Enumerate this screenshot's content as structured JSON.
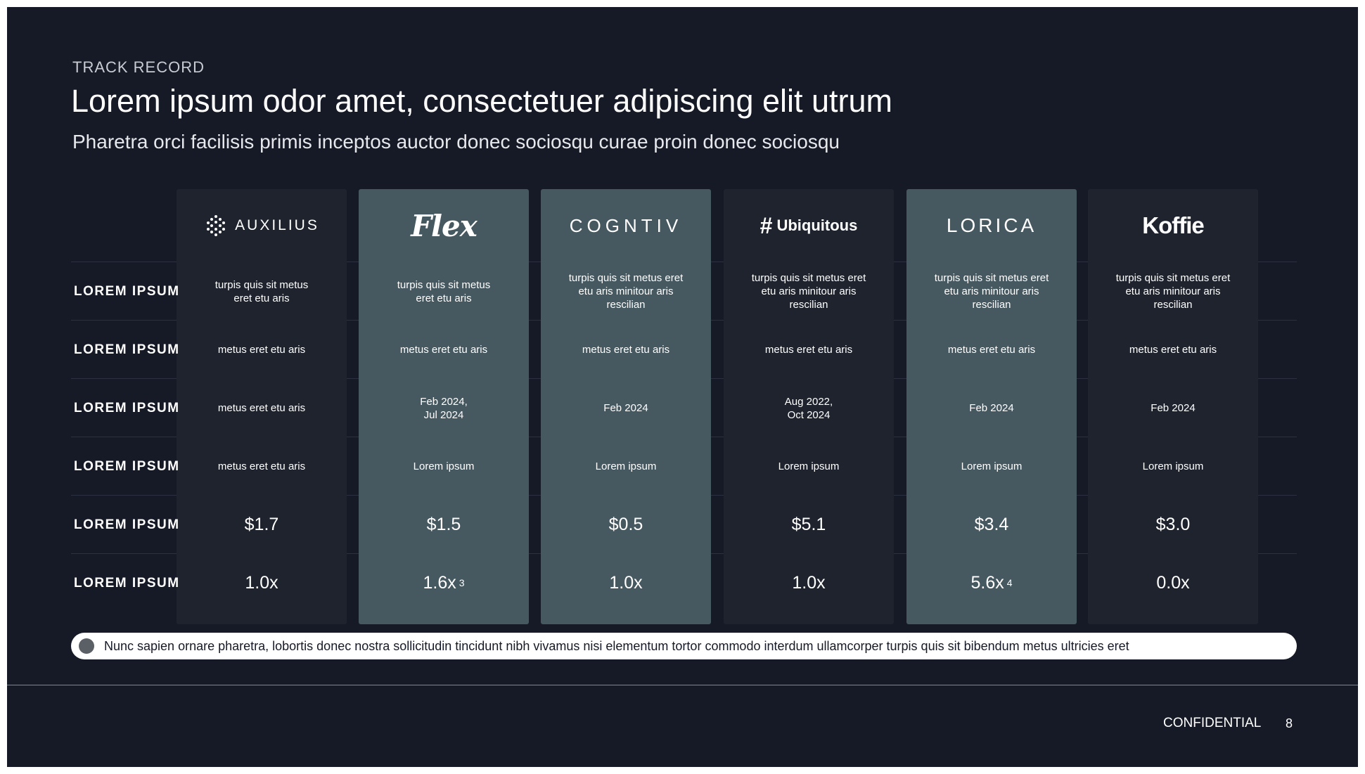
{
  "header": {
    "eyebrow": "TRACK RECORD",
    "title": "Lorem ipsum odor amet, consectetuer adipiscing elit utrum",
    "subtitle": "Pharetra orci facilisis primis inceptos auctor donec sociosqu curae proin donec sociosqu"
  },
  "table": {
    "row_labels": [
      "LOREM IPSUM",
      "LOREM IPSUM",
      "LOREM IPSUM",
      "LOREM IPSUM",
      "LOREM IPSUM",
      "LOREM IPSUM"
    ],
    "columns": [
      {
        "logo_text": "AUXILIUS",
        "logo_icon": "hexagon-dots-icon",
        "highlight": false,
        "cells": [
          "turpis quis sit metus\neret etu aris",
          "metus eret etu aris",
          "metus eret etu aris",
          "metus eret etu aris",
          "$1.7",
          "1.0x"
        ],
        "footnote": ""
      },
      {
        "logo_text": "Flex",
        "highlight": true,
        "cells": [
          "turpis quis sit metus\neret etu aris",
          "metus eret etu aris",
          "Feb 2024,\nJul 2024",
          "Lorem ipsum",
          "$1.5",
          "1.6x"
        ],
        "footnote": "3"
      },
      {
        "logo_text": "COGNTIV",
        "highlight": true,
        "cells": [
          "turpis quis sit metus eret\netu aris minitour aris\nrescilian",
          "metus eret etu aris",
          "Feb 2024",
          "Lorem ipsum",
          "$0.5",
          "1.0x"
        ],
        "footnote": ""
      },
      {
        "logo_text": "Ubiquitous",
        "logo_icon": "hash-icon",
        "highlight": false,
        "cells": [
          "turpis quis sit metus eret\netu aris minitour aris\nrescilian",
          "metus eret etu aris",
          "Aug 2022,\nOct 2024",
          "Lorem ipsum",
          "$5.1",
          "1.0x"
        ],
        "footnote": ""
      },
      {
        "logo_text": "LORICA",
        "highlight": true,
        "cells": [
          "turpis quis sit metus eret\netu aris minitour aris\nrescilian",
          "metus eret etu aris",
          "Feb 2024",
          "Lorem ipsum",
          "$3.4",
          "5.6x"
        ],
        "footnote": "4"
      },
      {
        "logo_text": "Koffie",
        "highlight": false,
        "cells": [
          "turpis quis sit metus eret\netu aris minitour aris\nrescilian",
          "metus eret etu aris",
          "Feb 2024",
          "Lorem ipsum",
          "$3.0",
          "0.0x"
        ],
        "footnote": ""
      }
    ]
  },
  "note": "Nunc sapien ornare pharetra, lobortis donec nostra sollicitudin tincidunt nibh vivamus nisi elementum tortor commodo interdum ullamcorper turpis quis sit bibendum metus ultricies eret",
  "footer": {
    "confidential": "CONFIDENTIAL",
    "page_number": "8"
  },
  "colors": {
    "background": "#161a26",
    "column_dark": "#1e232e",
    "column_highlight": "#465860",
    "note_background": "#ffffff"
  }
}
